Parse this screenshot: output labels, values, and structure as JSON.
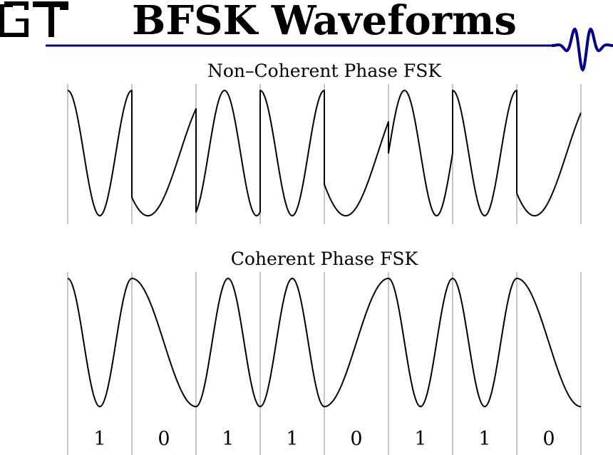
{
  "header": {
    "title": "BFSK Waveforms",
    "logo_text": "GT",
    "rule_color": "#00008b"
  },
  "panels": [
    {
      "title": "Non–Coherent Phase FSK"
    },
    {
      "title": "Coherent Phase FSK"
    }
  ],
  "bits": [
    "1",
    "0",
    "1",
    "1",
    "0",
    "1",
    "1",
    "0"
  ],
  "chart_data": [
    {
      "type": "line",
      "title": "Non–Coherent Phase FSK",
      "bits": [
        1,
        0,
        1,
        1,
        0,
        1,
        1,
        0
      ],
      "frequency_cycles_per_bit": {
        "1": 1.0,
        "0": 0.5
      },
      "start_phase_deg_per_bit": [
        0,
        135,
        200,
        0,
        120,
        270,
        0,
        130
      ],
      "grid": "vertical lines at bit boundaries"
    },
    {
      "type": "line",
      "title": "Coherent Phase FSK",
      "bits": [
        1,
        0,
        1,
        1,
        0,
        1,
        1,
        0
      ],
      "frequency_cycles_per_bit": {
        "1": 1.0,
        "0": 0.5
      },
      "phase": "continuous",
      "grid": "vertical lines at bit boundaries"
    }
  ]
}
